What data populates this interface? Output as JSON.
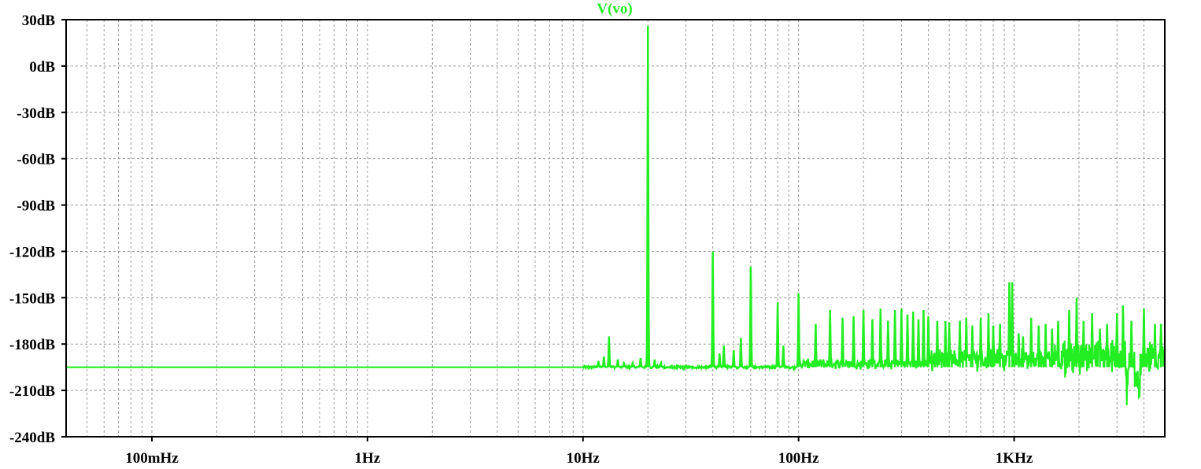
{
  "chart_data": {
    "type": "line",
    "title": "V(vo)",
    "xlabel": "",
    "ylabel": "",
    "x_scale": "log",
    "xlim_hz": [
      0.04,
      5000
    ],
    "ylim_db": [
      -240,
      30
    ],
    "y_ticks": [
      30,
      0,
      -30,
      -60,
      -90,
      -120,
      -150,
      -180,
      -210,
      -240
    ],
    "y_tick_labels": [
      "30dB",
      "0dB",
      "-30dB",
      "-60dB",
      "-90dB",
      "-120dB",
      "-150dB",
      "-180dB",
      "-210dB",
      "-240dB"
    ],
    "x_ticks_hz": [
      0.1,
      1,
      10,
      100,
      1000
    ],
    "x_tick_labels": [
      "100mHz",
      "1Hz",
      "10Hz",
      "100Hz",
      "1KHz"
    ],
    "grid": true,
    "line_color": "#22ee22",
    "baseline_db": -195,
    "series": [
      {
        "name": "V(vo)",
        "peaks": [
          {
            "f": 11.8,
            "db": -191
          },
          {
            "f": 12.5,
            "db": -188
          },
          {
            "f": 13.2,
            "db": -175
          },
          {
            "f": 14.5,
            "db": -190
          },
          {
            "f": 15.5,
            "db": -192
          },
          {
            "f": 17.0,
            "db": -192
          },
          {
            "f": 18.5,
            "db": -189
          },
          {
            "f": 20.0,
            "db": 26
          },
          {
            "f": 21.5,
            "db": -190
          },
          {
            "f": 23.0,
            "db": -192
          },
          {
            "f": 40.0,
            "db": -120
          },
          {
            "f": 43.0,
            "db": -186
          },
          {
            "f": 45.0,
            "db": -181
          },
          {
            "f": 50.0,
            "db": -184
          },
          {
            "f": 54.0,
            "db": -176
          },
          {
            "f": 60.0,
            "db": -130
          },
          {
            "f": 80.0,
            "db": -153
          },
          {
            "f": 85.0,
            "db": -181
          },
          {
            "f": 100.0,
            "db": -147
          },
          {
            "f": 120.0,
            "db": -167
          },
          {
            "f": 140.0,
            "db": -158
          },
          {
            "f": 160.0,
            "db": -163
          },
          {
            "f": 180.0,
            "db": -162
          },
          {
            "f": 200.0,
            "db": -158
          },
          {
            "f": 220.0,
            "db": -164
          },
          {
            "f": 240.0,
            "db": -157
          },
          {
            "f": 260.0,
            "db": -165
          },
          {
            "f": 280.0,
            "db": -158
          },
          {
            "f": 300.0,
            "db": -157
          },
          {
            "f": 320.0,
            "db": -161
          },
          {
            "f": 340.0,
            "db": -159
          },
          {
            "f": 360.0,
            "db": -164
          },
          {
            "f": 380.0,
            "db": -158
          },
          {
            "f": 400.0,
            "db": -162
          },
          {
            "f": 440.0,
            "db": -165
          },
          {
            "f": 480.0,
            "db": -165
          },
          {
            "f": 500.0,
            "db": -166
          },
          {
            "f": 560.0,
            "db": -165
          },
          {
            "f": 600.0,
            "db": -163
          },
          {
            "f": 640.0,
            "db": -168
          },
          {
            "f": 700.0,
            "db": -163
          },
          {
            "f": 760.0,
            "db": -160
          },
          {
            "f": 800.0,
            "db": -168
          },
          {
            "f": 860.0,
            "db": -167
          },
          {
            "f": 950.0,
            "db": -140
          },
          {
            "f": 980.0,
            "db": -140
          },
          {
            "f": 1050.0,
            "db": -173
          },
          {
            "f": 1100.0,
            "db": -175
          },
          {
            "f": 1200.0,
            "db": -163
          },
          {
            "f": 1300.0,
            "db": -168
          },
          {
            "f": 1400.0,
            "db": -167
          },
          {
            "f": 1500.0,
            "db": -170
          },
          {
            "f": 1600.0,
            "db": -165
          },
          {
            "f": 1800.0,
            "db": -158
          },
          {
            "f": 1950.0,
            "db": -150
          },
          {
            "f": 2100.0,
            "db": -165
          },
          {
            "f": 2300.0,
            "db": -160
          },
          {
            "f": 2500.0,
            "db": -170
          },
          {
            "f": 2700.0,
            "db": -167
          },
          {
            "f": 3000.0,
            "db": -160
          },
          {
            "f": 3200.0,
            "db": -155
          },
          {
            "f": 3500.0,
            "db": -165
          },
          {
            "f": 4000.0,
            "db": -157
          },
          {
            "f": 4500.0,
            "db": -167
          },
          {
            "f": 4800.0,
            "db": -167
          }
        ]
      }
    ]
  }
}
